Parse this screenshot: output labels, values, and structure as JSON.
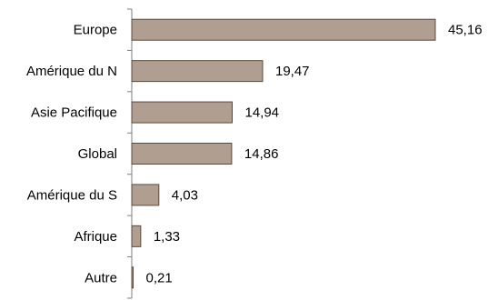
{
  "chart_data": {
    "type": "bar",
    "orientation": "horizontal",
    "categories": [
      "Europe",
      "Amérique du N",
      "Asie Pacifique",
      "Global",
      "Amérique du S",
      "Afrique",
      "Autre"
    ],
    "values": [
      45.16,
      19.47,
      14.94,
      14.86,
      4.03,
      1.33,
      0.21
    ],
    "value_labels": [
      "45,16",
      "19,47",
      "14,94",
      "14,86",
      "4,03",
      "1,33",
      "0,21"
    ],
    "title": "",
    "xlabel": "",
    "ylabel": "",
    "xlim": [
      0,
      45.16
    ],
    "grid": false,
    "legend": "none",
    "bar_color": "#b09f91",
    "bar_edge_color": "#5a4a3e"
  }
}
